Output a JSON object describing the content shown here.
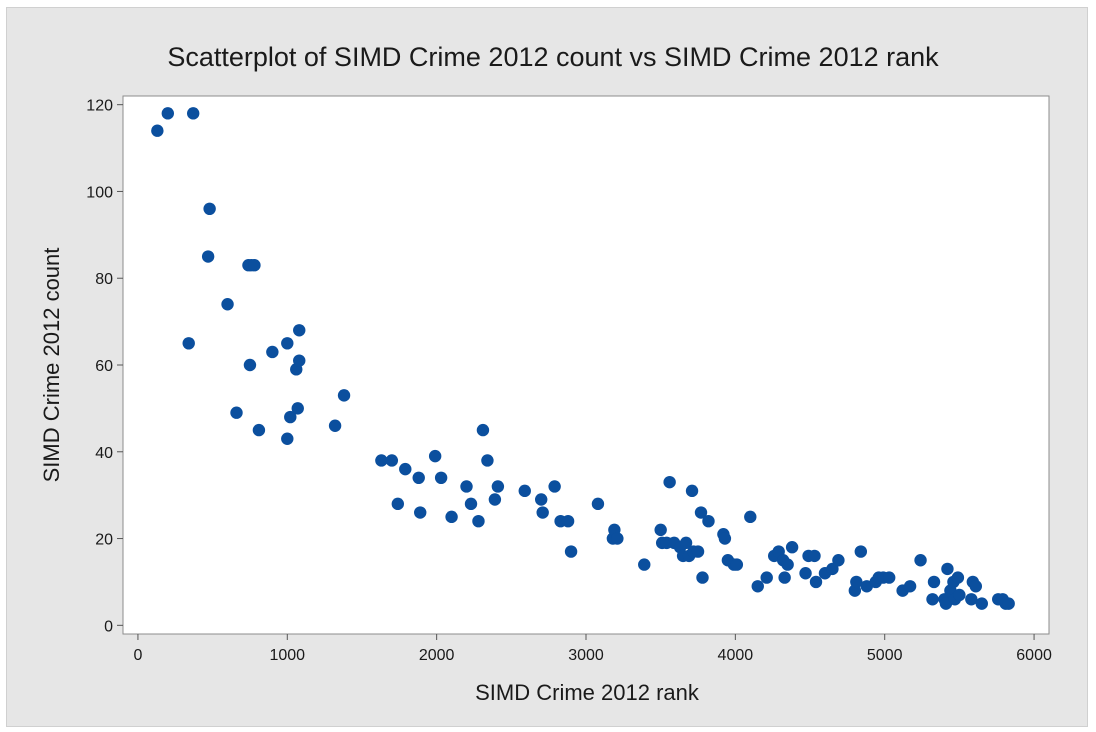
{
  "chart_data": {
    "type": "scatter",
    "title": "Scatterplot of SIMD Crime 2012 count vs SIMD Crime 2012 rank",
    "xlabel": "SIMD Crime 2012 rank",
    "ylabel": "SIMD Crime 2012 count",
    "xlim": [
      -100,
      6100
    ],
    "ylim": [
      -2,
      122
    ],
    "xticks": [
      "0",
      "1000",
      "2000",
      "3000",
      "4000",
      "5000",
      "6000"
    ],
    "yticks": [
      "0",
      "20",
      "40",
      "60",
      "80",
      "100",
      "120"
    ],
    "grid": false,
    "legend": "none",
    "marker_color": "#0b4f9e",
    "points": [
      {
        "x": 130,
        "y": 114
      },
      {
        "x": 200,
        "y": 118
      },
      {
        "x": 370,
        "y": 118
      },
      {
        "x": 340,
        "y": 65
      },
      {
        "x": 480,
        "y": 96
      },
      {
        "x": 470,
        "y": 85
      },
      {
        "x": 600,
        "y": 74
      },
      {
        "x": 660,
        "y": 49
      },
      {
        "x": 740,
        "y": 83
      },
      {
        "x": 760,
        "y": 83
      },
      {
        "x": 780,
        "y": 83
      },
      {
        "x": 750,
        "y": 60
      },
      {
        "x": 810,
        "y": 45
      },
      {
        "x": 900,
        "y": 63
      },
      {
        "x": 1000,
        "y": 65
      },
      {
        "x": 1000,
        "y": 43
      },
      {
        "x": 1020,
        "y": 48
      },
      {
        "x": 1060,
        "y": 59
      },
      {
        "x": 1070,
        "y": 50
      },
      {
        "x": 1080,
        "y": 61
      },
      {
        "x": 1080,
        "y": 68
      },
      {
        "x": 1320,
        "y": 46
      },
      {
        "x": 1380,
        "y": 53
      },
      {
        "x": 1630,
        "y": 38
      },
      {
        "x": 1700,
        "y": 38
      },
      {
        "x": 1740,
        "y": 28
      },
      {
        "x": 1790,
        "y": 36
      },
      {
        "x": 1880,
        "y": 34
      },
      {
        "x": 1890,
        "y": 26
      },
      {
        "x": 1990,
        "y": 39
      },
      {
        "x": 2030,
        "y": 34
      },
      {
        "x": 2100,
        "y": 25
      },
      {
        "x": 2200,
        "y": 32
      },
      {
        "x": 2230,
        "y": 28
      },
      {
        "x": 2280,
        "y": 24
      },
      {
        "x": 2310,
        "y": 45
      },
      {
        "x": 2340,
        "y": 38
      },
      {
        "x": 2390,
        "y": 29
      },
      {
        "x": 2410,
        "y": 32
      },
      {
        "x": 2590,
        "y": 31
      },
      {
        "x": 2700,
        "y": 29
      },
      {
        "x": 2710,
        "y": 26
      },
      {
        "x": 2790,
        "y": 32
      },
      {
        "x": 2830,
        "y": 24
      },
      {
        "x": 2880,
        "y": 24
      },
      {
        "x": 2900,
        "y": 17
      },
      {
        "x": 3080,
        "y": 28
      },
      {
        "x": 3180,
        "y": 20
      },
      {
        "x": 3190,
        "y": 22
      },
      {
        "x": 3210,
        "y": 20
      },
      {
        "x": 3390,
        "y": 14
      },
      {
        "x": 3500,
        "y": 22
      },
      {
        "x": 3510,
        "y": 19
      },
      {
        "x": 3540,
        "y": 19
      },
      {
        "x": 3560,
        "y": 33
      },
      {
        "x": 3590,
        "y": 19
      },
      {
        "x": 3630,
        "y": 18
      },
      {
        "x": 3650,
        "y": 16
      },
      {
        "x": 3670,
        "y": 19
      },
      {
        "x": 3690,
        "y": 16
      },
      {
        "x": 3710,
        "y": 31
      },
      {
        "x": 3720,
        "y": 17
      },
      {
        "x": 3750,
        "y": 17
      },
      {
        "x": 3770,
        "y": 26
      },
      {
        "x": 3780,
        "y": 11
      },
      {
        "x": 3820,
        "y": 24
      },
      {
        "x": 3920,
        "y": 21
      },
      {
        "x": 3930,
        "y": 20
      },
      {
        "x": 3950,
        "y": 15
      },
      {
        "x": 3990,
        "y": 14
      },
      {
        "x": 4010,
        "y": 14
      },
      {
        "x": 4100,
        "y": 25
      },
      {
        "x": 4150,
        "y": 9
      },
      {
        "x": 4210,
        "y": 11
      },
      {
        "x": 4260,
        "y": 16
      },
      {
        "x": 4290,
        "y": 17
      },
      {
        "x": 4320,
        "y": 15
      },
      {
        "x": 4330,
        "y": 11
      },
      {
        "x": 4350,
        "y": 14
      },
      {
        "x": 4380,
        "y": 18
      },
      {
        "x": 4470,
        "y": 12
      },
      {
        "x": 4490,
        "y": 16
      },
      {
        "x": 4530,
        "y": 16
      },
      {
        "x": 4540,
        "y": 10
      },
      {
        "x": 4600,
        "y": 12
      },
      {
        "x": 4650,
        "y": 13
      },
      {
        "x": 4690,
        "y": 15
      },
      {
        "x": 4800,
        "y": 8
      },
      {
        "x": 4810,
        "y": 10
      },
      {
        "x": 4840,
        "y": 17
      },
      {
        "x": 4880,
        "y": 9
      },
      {
        "x": 4940,
        "y": 10
      },
      {
        "x": 4960,
        "y": 11
      },
      {
        "x": 4990,
        "y": 11
      },
      {
        "x": 5030,
        "y": 11
      },
      {
        "x": 5120,
        "y": 8
      },
      {
        "x": 5170,
        "y": 9
      },
      {
        "x": 5240,
        "y": 15
      },
      {
        "x": 5320,
        "y": 6
      },
      {
        "x": 5330,
        "y": 10
      },
      {
        "x": 5400,
        "y": 6
      },
      {
        "x": 5410,
        "y": 5
      },
      {
        "x": 5420,
        "y": 13
      },
      {
        "x": 5440,
        "y": 8
      },
      {
        "x": 5460,
        "y": 10
      },
      {
        "x": 5470,
        "y": 6
      },
      {
        "x": 5490,
        "y": 11
      },
      {
        "x": 5500,
        "y": 7
      },
      {
        "x": 5580,
        "y": 6
      },
      {
        "x": 5590,
        "y": 10
      },
      {
        "x": 5610,
        "y": 9
      },
      {
        "x": 5650,
        "y": 5
      },
      {
        "x": 5760,
        "y": 6
      },
      {
        "x": 5790,
        "y": 6
      },
      {
        "x": 5810,
        "y": 5
      },
      {
        "x": 5830,
        "y": 5
      }
    ]
  }
}
